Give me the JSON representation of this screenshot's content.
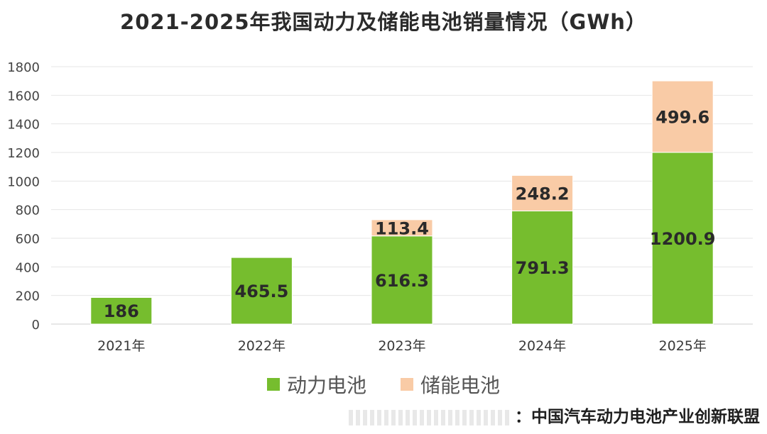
{
  "chart_data": {
    "type": "bar",
    "stacked": true,
    "title": "2021-2025年我国动力及储能电池销量情况（GWh）",
    "categories": [
      "2021年",
      "2022年",
      "2023年",
      "2024年",
      "2025年"
    ],
    "series": [
      {
        "name": "动力电池",
        "values": [
          186,
          465.5,
          616.3,
          791.3,
          1200.9
        ],
        "labels": [
          "186",
          "465.5",
          "616.3",
          "791.3",
          "1200.9"
        ],
        "color": "#76bd2e"
      },
      {
        "name": "储能电池",
        "values": [
          null,
          null,
          113.4,
          248.2,
          499.6
        ],
        "labels": [
          "",
          "",
          "113.4",
          "248.2",
          "499.6"
        ],
        "color": "#f9cba6"
      }
    ],
    "ylim": [
      0,
      1800
    ],
    "yticks": [
      "0",
      "200",
      "400",
      "600",
      "800",
      "1000",
      "1200",
      "1400",
      "1600",
      "1800"
    ],
    "grid": true,
    "legend_position": "bottom"
  },
  "source_text": "：中国汽车动力电池产业创新联盟"
}
